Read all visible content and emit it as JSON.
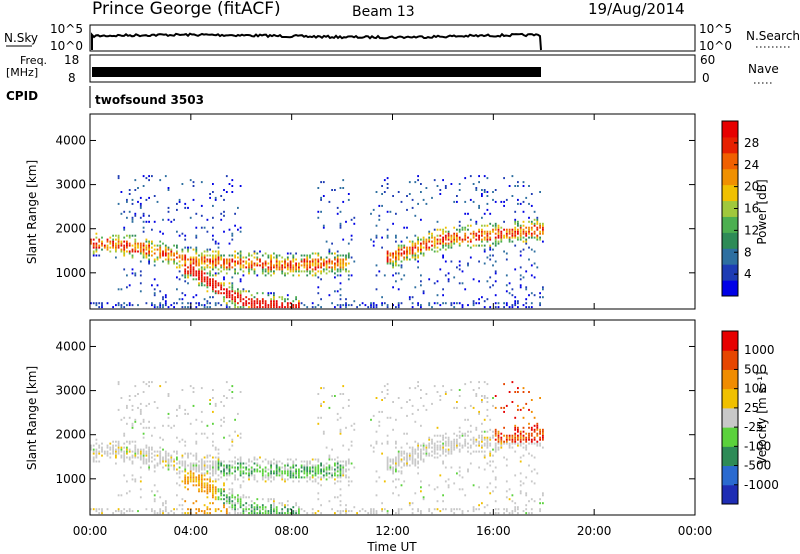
{
  "header": {
    "station": "Prince George (fitACF)",
    "beam": "Beam 13",
    "date": "19/Aug/2014"
  },
  "top_panels": {
    "nsky_label": "N.Sky",
    "nsky_ticks": [
      "10^5",
      "10^0"
    ],
    "nsearch_label": "N.Search",
    "freq_label_1": "Freq.",
    "freq_label_2": "[MHz]",
    "freq_ticks": [
      "18",
      "8"
    ],
    "nave_label": "Nave",
    "nave_ticks": [
      "60",
      "0"
    ],
    "cpid_label": "CPID",
    "cpid_value": "twofsound 3503"
  },
  "chart_data": [
    {
      "type": "heatmap",
      "title": "",
      "xlabel": "Time UT",
      "ylabel": "Slant Range [km]",
      "x_ticks": [
        "00:00",
        "04:00",
        "08:00",
        "12:00",
        "16:00",
        "20:00",
        "00:00"
      ],
      "y_ticks": [
        "1000",
        "2000",
        "3000",
        "4000"
      ],
      "ylim": [
        180,
        4600
      ],
      "xlim_hours": [
        0,
        24
      ],
      "data_end_hour": 18,
      "colorbar": {
        "label": "Power [dB]",
        "ticks": [
          "28",
          "24",
          "20",
          "16",
          "12",
          "8",
          "4"
        ],
        "colors": [
          "#0000e6",
          "#1e3cb4",
          "#2e6fa0",
          "#2e8b57",
          "#4caf50",
          "#a0c83c",
          "#f0c000",
          "#f09000",
          "#f06000",
          "#e62000",
          "#e60000"
        ]
      },
      "echo_bands": [
        {
          "name": "main band",
          "points": [
            [
              0,
              1650
            ],
            [
              2,
              1550
            ],
            [
              4,
              1250
            ],
            [
              6,
              1200
            ],
            [
              8,
              1150
            ],
            [
              10,
              1200
            ]
          ]
        },
        {
          "name": "lower band",
          "points": [
            [
              4,
              1050
            ],
            [
              5,
              650
            ],
            [
              6,
              350
            ],
            [
              7,
              250
            ],
            [
              8,
              200
            ]
          ]
        },
        {
          "name": "late band",
          "points": [
            [
              12,
              1350
            ],
            [
              14,
              1750
            ],
            [
              16,
              1850
            ],
            [
              18,
              1950
            ]
          ]
        }
      ]
    },
    {
      "type": "heatmap",
      "title": "",
      "xlabel": "Time UT",
      "ylabel": "Slant Range [km]",
      "x_ticks": [
        "00:00",
        "04:00",
        "08:00",
        "12:00",
        "16:00",
        "20:00",
        "00:00"
      ],
      "y_ticks": [
        "1000",
        "2000",
        "3000",
        "4000"
      ],
      "ylim": [
        180,
        4600
      ],
      "xlim_hours": [
        0,
        24
      ],
      "data_end_hour": 18,
      "colorbar": {
        "label": "Velocity [m s⁻¹]",
        "ticks": [
          "1000",
          "500",
          "100",
          "25",
          "-25",
          "-100",
          "-500",
          "-1000"
        ],
        "colors": [
          "#1e2db4",
          "#2a6acf",
          "#2e8b57",
          "#5bd23c",
          "#c8c8c8",
          "#f0c000",
          "#f08c00",
          "#e64600",
          "#e60000"
        ]
      }
    }
  ]
}
